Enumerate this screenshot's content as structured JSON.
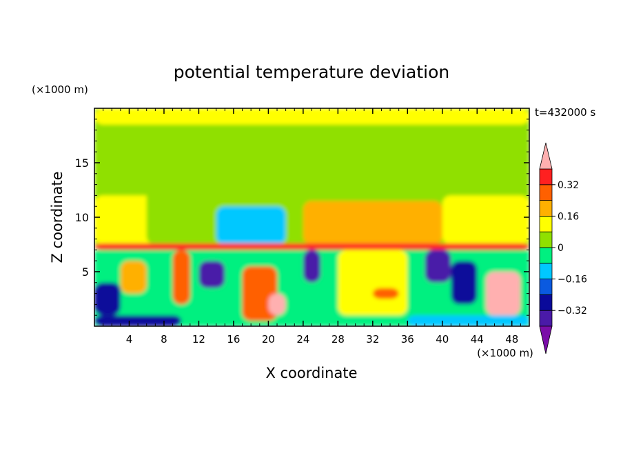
{
  "chart_data": {
    "type": "heatmap",
    "title": "potential temperature deviation",
    "xlabel": "X coordinate",
    "ylabel": "Z coordinate",
    "x_unit": "(×1000 m)",
    "z_unit": "(×1000 m)",
    "time_label": "t=432000 s",
    "xlim": [
      0,
      50
    ],
    "zlim": [
      0,
      20
    ],
    "x_ticks": [
      4,
      8,
      12,
      16,
      20,
      24,
      28,
      32,
      36,
      40,
      44,
      48
    ],
    "z_ticks": [
      5,
      10,
      15
    ],
    "colorbar": {
      "levels": [
        -0.4,
        -0.32,
        -0.24,
        -0.16,
        -0.08,
        0,
        0.08,
        0.16,
        0.24,
        0.32,
        0.4
      ],
      "tick_labels": [
        "0.32",
        "0.16",
        "0",
        "−0.16",
        "−0.32"
      ],
      "tick_values": [
        0.32,
        0.16,
        0,
        -0.16,
        -0.32
      ],
      "colors": [
        "#7a0ea8",
        "#4a1aa8",
        "#0a0a9a",
        "#0a5ae0",
        "#00c8ff",
        "#00f080",
        "#90e000",
        "#ffff00",
        "#ffb000",
        "#ff6000",
        "#ff2020",
        "#ffb0b0"
      ]
    },
    "field_regions": [
      {
        "x": [
          0,
          50
        ],
        "z": [
          7.5,
          20
        ],
        "value": 0.04
      },
      {
        "x": [
          0,
          50
        ],
        "z": [
          18.5,
          20
        ],
        "value": 0.1
      },
      {
        "x": [
          0,
          8
        ],
        "z": [
          7.5,
          12
        ],
        "value": 0.1
      },
      {
        "x": [
          6,
          22
        ],
        "z": [
          7.5,
          13
        ],
        "value": 0.02
      },
      {
        "x": [
          14,
          22
        ],
        "z": [
          7.5,
          11
        ],
        "value": -0.1
      },
      {
        "x": [
          24,
          40
        ],
        "z": [
          7.5,
          11.5
        ],
        "value": 0.18
      },
      {
        "x": [
          24,
          40
        ],
        "z": [
          7.5,
          9
        ],
        "value": 0.22
      },
      {
        "x": [
          40,
          50
        ],
        "z": [
          7.5,
          12
        ],
        "value": 0.1
      },
      {
        "x": [
          0,
          50
        ],
        "z": [
          7,
          7.6
        ],
        "value": 0.34
      },
      {
        "x": [
          0,
          50
        ],
        "z": [
          0,
          7
        ],
        "value": -0.05
      },
      {
        "x": [
          0,
          3
        ],
        "z": [
          1,
          4
        ],
        "value": -0.28
      },
      {
        "x": [
          3,
          6
        ],
        "z": [
          3,
          6
        ],
        "value": 0.22
      },
      {
        "x": [
          9,
          11
        ],
        "z": [
          2,
          7
        ],
        "value": 0.28
      },
      {
        "x": [
          12,
          15
        ],
        "z": [
          3.5,
          6
        ],
        "value": -0.36
      },
      {
        "x": [
          17,
          21
        ],
        "z": [
          0.5,
          5.5
        ],
        "value": 0.3
      },
      {
        "x": [
          20,
          22
        ],
        "z": [
          1,
          3
        ],
        "value": 0.4
      },
      {
        "x": [
          24,
          26
        ],
        "z": [
          4,
          7
        ],
        "value": -0.38
      },
      {
        "x": [
          28,
          36
        ],
        "z": [
          1,
          7
        ],
        "value": 0.14
      },
      {
        "x": [
          32,
          35
        ],
        "z": [
          2.5,
          3.5
        ],
        "value": 0.3
      },
      {
        "x": [
          38,
          41
        ],
        "z": [
          4,
          7
        ],
        "value": -0.36
      },
      {
        "x": [
          41,
          44
        ],
        "z": [
          2,
          6
        ],
        "value": -0.3
      },
      {
        "x": [
          45,
          49
        ],
        "z": [
          1,
          5
        ],
        "value": 0.4
      },
      {
        "x": [
          36,
          50
        ],
        "z": [
          0,
          1
        ],
        "value": -0.1
      },
      {
        "x": [
          0,
          10
        ],
        "z": [
          0,
          1
        ],
        "value": -0.32
      }
    ]
  }
}
